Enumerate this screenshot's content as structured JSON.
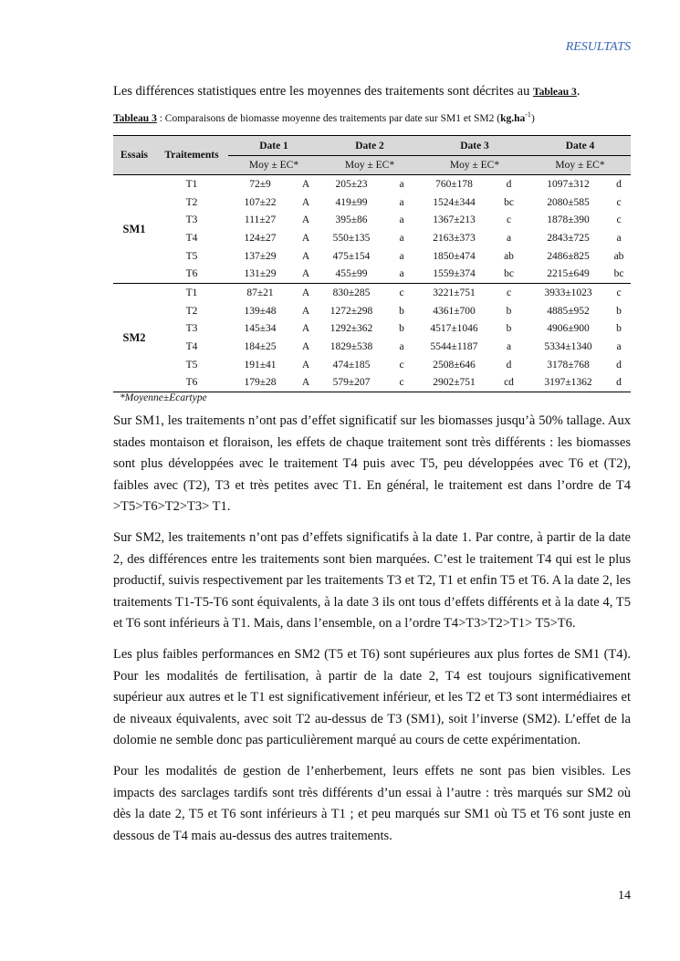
{
  "header": "RESULTATS",
  "intro": {
    "text": "Les différences statistiques entre les moyennes des traitements sont décrites au ",
    "ref": "Tableau 3",
    "end": "."
  },
  "caption": {
    "label": "Tableau 3",
    "text": " : Comparaisons de biomasse moyenne des traitements par date sur SM1 et SM2 (",
    "unit": "kg.ha",
    "sup": "-1",
    "close": ")"
  },
  "table": {
    "col_essais": "Essais",
    "col_traitements": "Traitements",
    "dates": [
      "Date 1",
      "Date 2",
      "Date 3",
      "Date 4"
    ],
    "sub": "Moy ± EC*",
    "groups": [
      {
        "essai": "SM1",
        "rows": [
          [
            "T1",
            "72±9",
            "A",
            "205±23",
            "a",
            "760±178",
            "d",
            "1097±312",
            "d"
          ],
          [
            "T2",
            "107±22",
            "A",
            "419±99",
            "a",
            "1524±344",
            "bc",
            "2080±585",
            "c"
          ],
          [
            "T3",
            "111±27",
            "A",
            "395±86",
            "a",
            "1367±213",
            "c",
            "1878±390",
            "c"
          ],
          [
            "T4",
            "124±27",
            "A",
            "550±135",
            "a",
            "2163±373",
            "a",
            "2843±725",
            "a"
          ],
          [
            "T5",
            "137±29",
            "A",
            "475±154",
            "a",
            "1850±474",
            "ab",
            "2486±825",
            "ab"
          ],
          [
            "T6",
            "131±29",
            "A",
            "455±99",
            "a",
            "1559±374",
            "bc",
            "2215±649",
            "bc"
          ]
        ]
      },
      {
        "essai": "SM2",
        "rows": [
          [
            "T1",
            "87±21",
            "A",
            "830±285",
            "c",
            "3221±751",
            "c",
            "3933±1023",
            "c"
          ],
          [
            "T2",
            "139±48",
            "A",
            "1272±298",
            "b",
            "4361±700",
            "b",
            "4885±952",
            "b"
          ],
          [
            "T3",
            "145±34",
            "A",
            "1292±362",
            "b",
            "4517±1046",
            "b",
            "4906±900",
            "b"
          ],
          [
            "T4",
            "184±25",
            "A",
            "1829±538",
            "a",
            "5544±1187",
            "a",
            "5334±1340",
            "a"
          ],
          [
            "T5",
            "191±41",
            "A",
            "474±185",
            "c",
            "2508±646",
            "d",
            "3178±768",
            "d"
          ],
          [
            "T6",
            "179±28",
            "A",
            "579±207",
            "c",
            "2902±751",
            "cd",
            "3197±1362",
            "d"
          ]
        ]
      }
    ],
    "footnote": "*Moyenne±Ecartype"
  },
  "paragraphs": [
    "Sur SM1, les traitements n’ont pas d’effet significatif sur les biomasses jusqu’à 50% tallage. Aux stades montaison et floraison, les effets de chaque traitement sont très différents : les biomasses sont plus développées avec le traitement T4 puis avec T5, peu développées avec T6 et (T2), faibles avec (T2), T3 et très petites avec T1. En général, le traitement est dans l’ordre de T4 >T5>T6>T2>T3> T1.",
    "Sur SM2, les traitements n’ont pas d’effets significatifs à la date 1. Par contre, à partir de la date 2, des différences entre les traitements sont bien marquées. C’est le traitement T4 qui est le plus productif, suivis respectivement par les traitements T3 et T2, T1 et enfin T5 et T6. A la date 2, les traitements T1-T5-T6 sont équivalents, à la date 3 ils ont tous d’effets différents et à la date 4, T5 et T6 sont inférieurs à T1. Mais, dans l’ensemble, on a l’ordre T4>T3>T2>T1> T5>T6.",
    "Les plus faibles performances en SM2 (T5 et T6) sont supérieures aux plus fortes de SM1 (T4). Pour les modalités de fertilisation, à partir de la date 2, T4 est toujours significativement supérieur aux autres et le T1 est significativement inférieur, et les T2 et T3 sont intermédiaires et de niveaux équivalents, avec soit T2 au-dessus de T3 (SM1), soit l’inverse (SM2). L’effet de la dolomie ne semble donc pas particulièrement marqué au cours de cette expérimentation.",
    "Pour les modalités de gestion de l’enherbement, leurs effets ne sont pas bien visibles. Les impacts des sarclages tardifs sont très différents d’un essai à l’autre : très marqués sur SM2 où dès la date 2, T5 et T6 sont inférieurs à T1 ; et peu marqués sur SM1 où T5 et T6 sont juste en dessous de T4 mais au-dessus des autres traitements."
  ],
  "page_number": "14"
}
